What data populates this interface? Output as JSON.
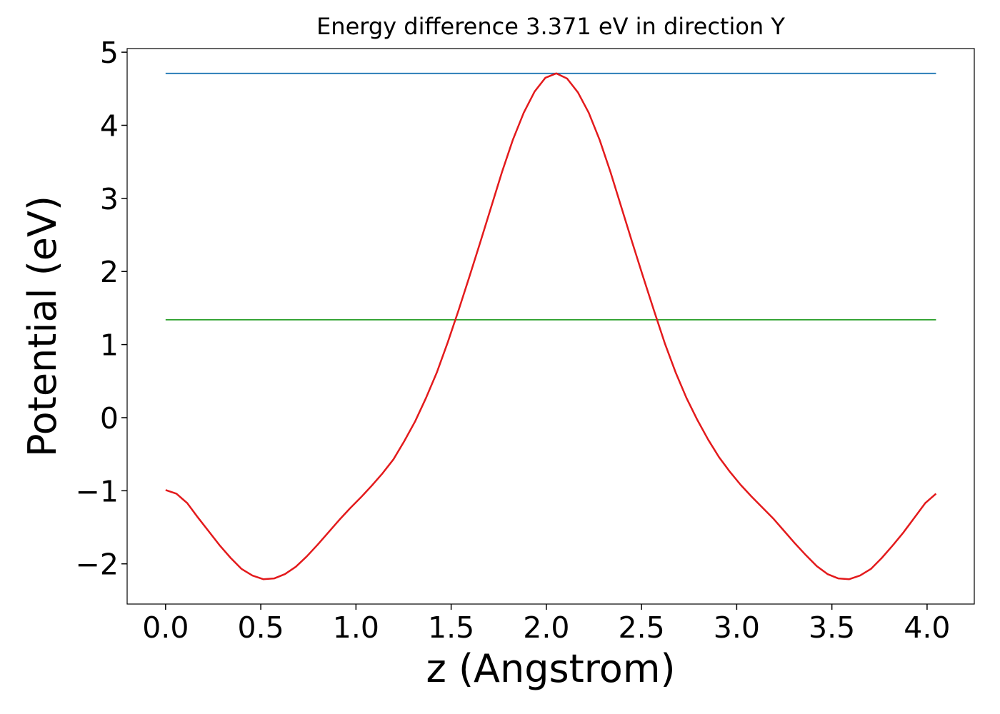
{
  "chart_data": {
    "type": "line",
    "title": "Energy difference 3.371 eV in direction Y",
    "x_label": "z (Angstrom)",
    "y_label": "Potential (eV)",
    "xlim": [
      -0.202,
      4.248
    ],
    "ylim": [
      -2.55,
      5.05
    ],
    "xticks": [
      {
        "value": 0,
        "label": "0.0"
      },
      {
        "value": 0.5,
        "label": "0.5"
      },
      {
        "value": 1,
        "label": "1.0"
      },
      {
        "value": 1.5,
        "label": "1.5"
      },
      {
        "value": 2,
        "label": "2.0"
      },
      {
        "value": 2.5,
        "label": "2.5"
      },
      {
        "value": 3,
        "label": "3.0"
      },
      {
        "value": 3.5,
        "label": "3.5"
      },
      {
        "value": 4,
        "label": "4.0"
      }
    ],
    "yticks": [
      {
        "value": -2,
        "label": "−2"
      },
      {
        "value": -1,
        "label": "−1"
      },
      0,
      1,
      2,
      3,
      4,
      5
    ],
    "series": [
      {
        "color": "#1f77b4",
        "x": [
          0,
          4.047
        ],
        "values": [
          4.71,
          4.71
        ]
      },
      {
        "color": "#2ca02c",
        "x": [
          0,
          4.047
        ],
        "values": [
          1.339,
          1.339
        ]
      },
      {
        "color": "#e31a1c",
        "x": [
          0,
          0.057,
          0.114,
          0.171,
          0.228,
          0.285,
          0.342,
          0.399,
          0.456,
          0.513,
          0.57,
          0.627,
          0.684,
          0.741,
          0.798,
          0.855,
          0.912,
          0.969,
          1.026,
          1.083,
          1.14,
          1.197,
          1.254,
          1.311,
          1.368,
          1.425,
          1.482,
          1.539,
          1.596,
          1.653,
          1.71,
          1.767,
          1.824,
          1.881,
          1.938,
          1.995,
          2.052,
          2.109,
          2.166,
          2.223,
          2.28,
          2.337,
          2.394,
          2.451,
          2.508,
          2.565,
          2.622,
          2.679,
          2.736,
          2.793,
          2.85,
          2.907,
          2.964,
          3.021,
          3.078,
          3.135,
          3.192,
          3.249,
          3.306,
          3.363,
          3.42,
          3.477,
          3.534,
          3.591,
          3.648,
          3.705,
          3.762,
          3.819,
          3.876,
          3.933,
          3.99,
          4.047
        ],
        "values": [
          -0.99,
          -1.04,
          -1.17,
          -1.37,
          -1.56,
          -1.75,
          -1.92,
          -2.07,
          -2.16,
          -2.21,
          -2.2,
          -2.14,
          -2.04,
          -1.9,
          -1.74,
          -1.57,
          -1.4,
          -1.24,
          -1.09,
          -0.93,
          -0.76,
          -0.57,
          -0.32,
          -0.05,
          0.27,
          0.62,
          1.03,
          1.47,
          1.93,
          2.4,
          2.88,
          3.36,
          3.8,
          4.17,
          4.46,
          4.65,
          4.71,
          4.64,
          4.45,
          4.17,
          3.8,
          3.36,
          2.88,
          2.4,
          1.93,
          1.47,
          1.02,
          0.62,
          0.27,
          -0.03,
          -0.3,
          -0.54,
          -0.74,
          -0.92,
          -1.08,
          -1.23,
          -1.38,
          -1.55,
          -1.72,
          -1.88,
          -2.03,
          -2.14,
          -2.2,
          -2.21,
          -2.16,
          -2.07,
          -1.92,
          -1.75,
          -1.57,
          -1.37,
          -1.17,
          -1.04
        ]
      }
    ]
  }
}
